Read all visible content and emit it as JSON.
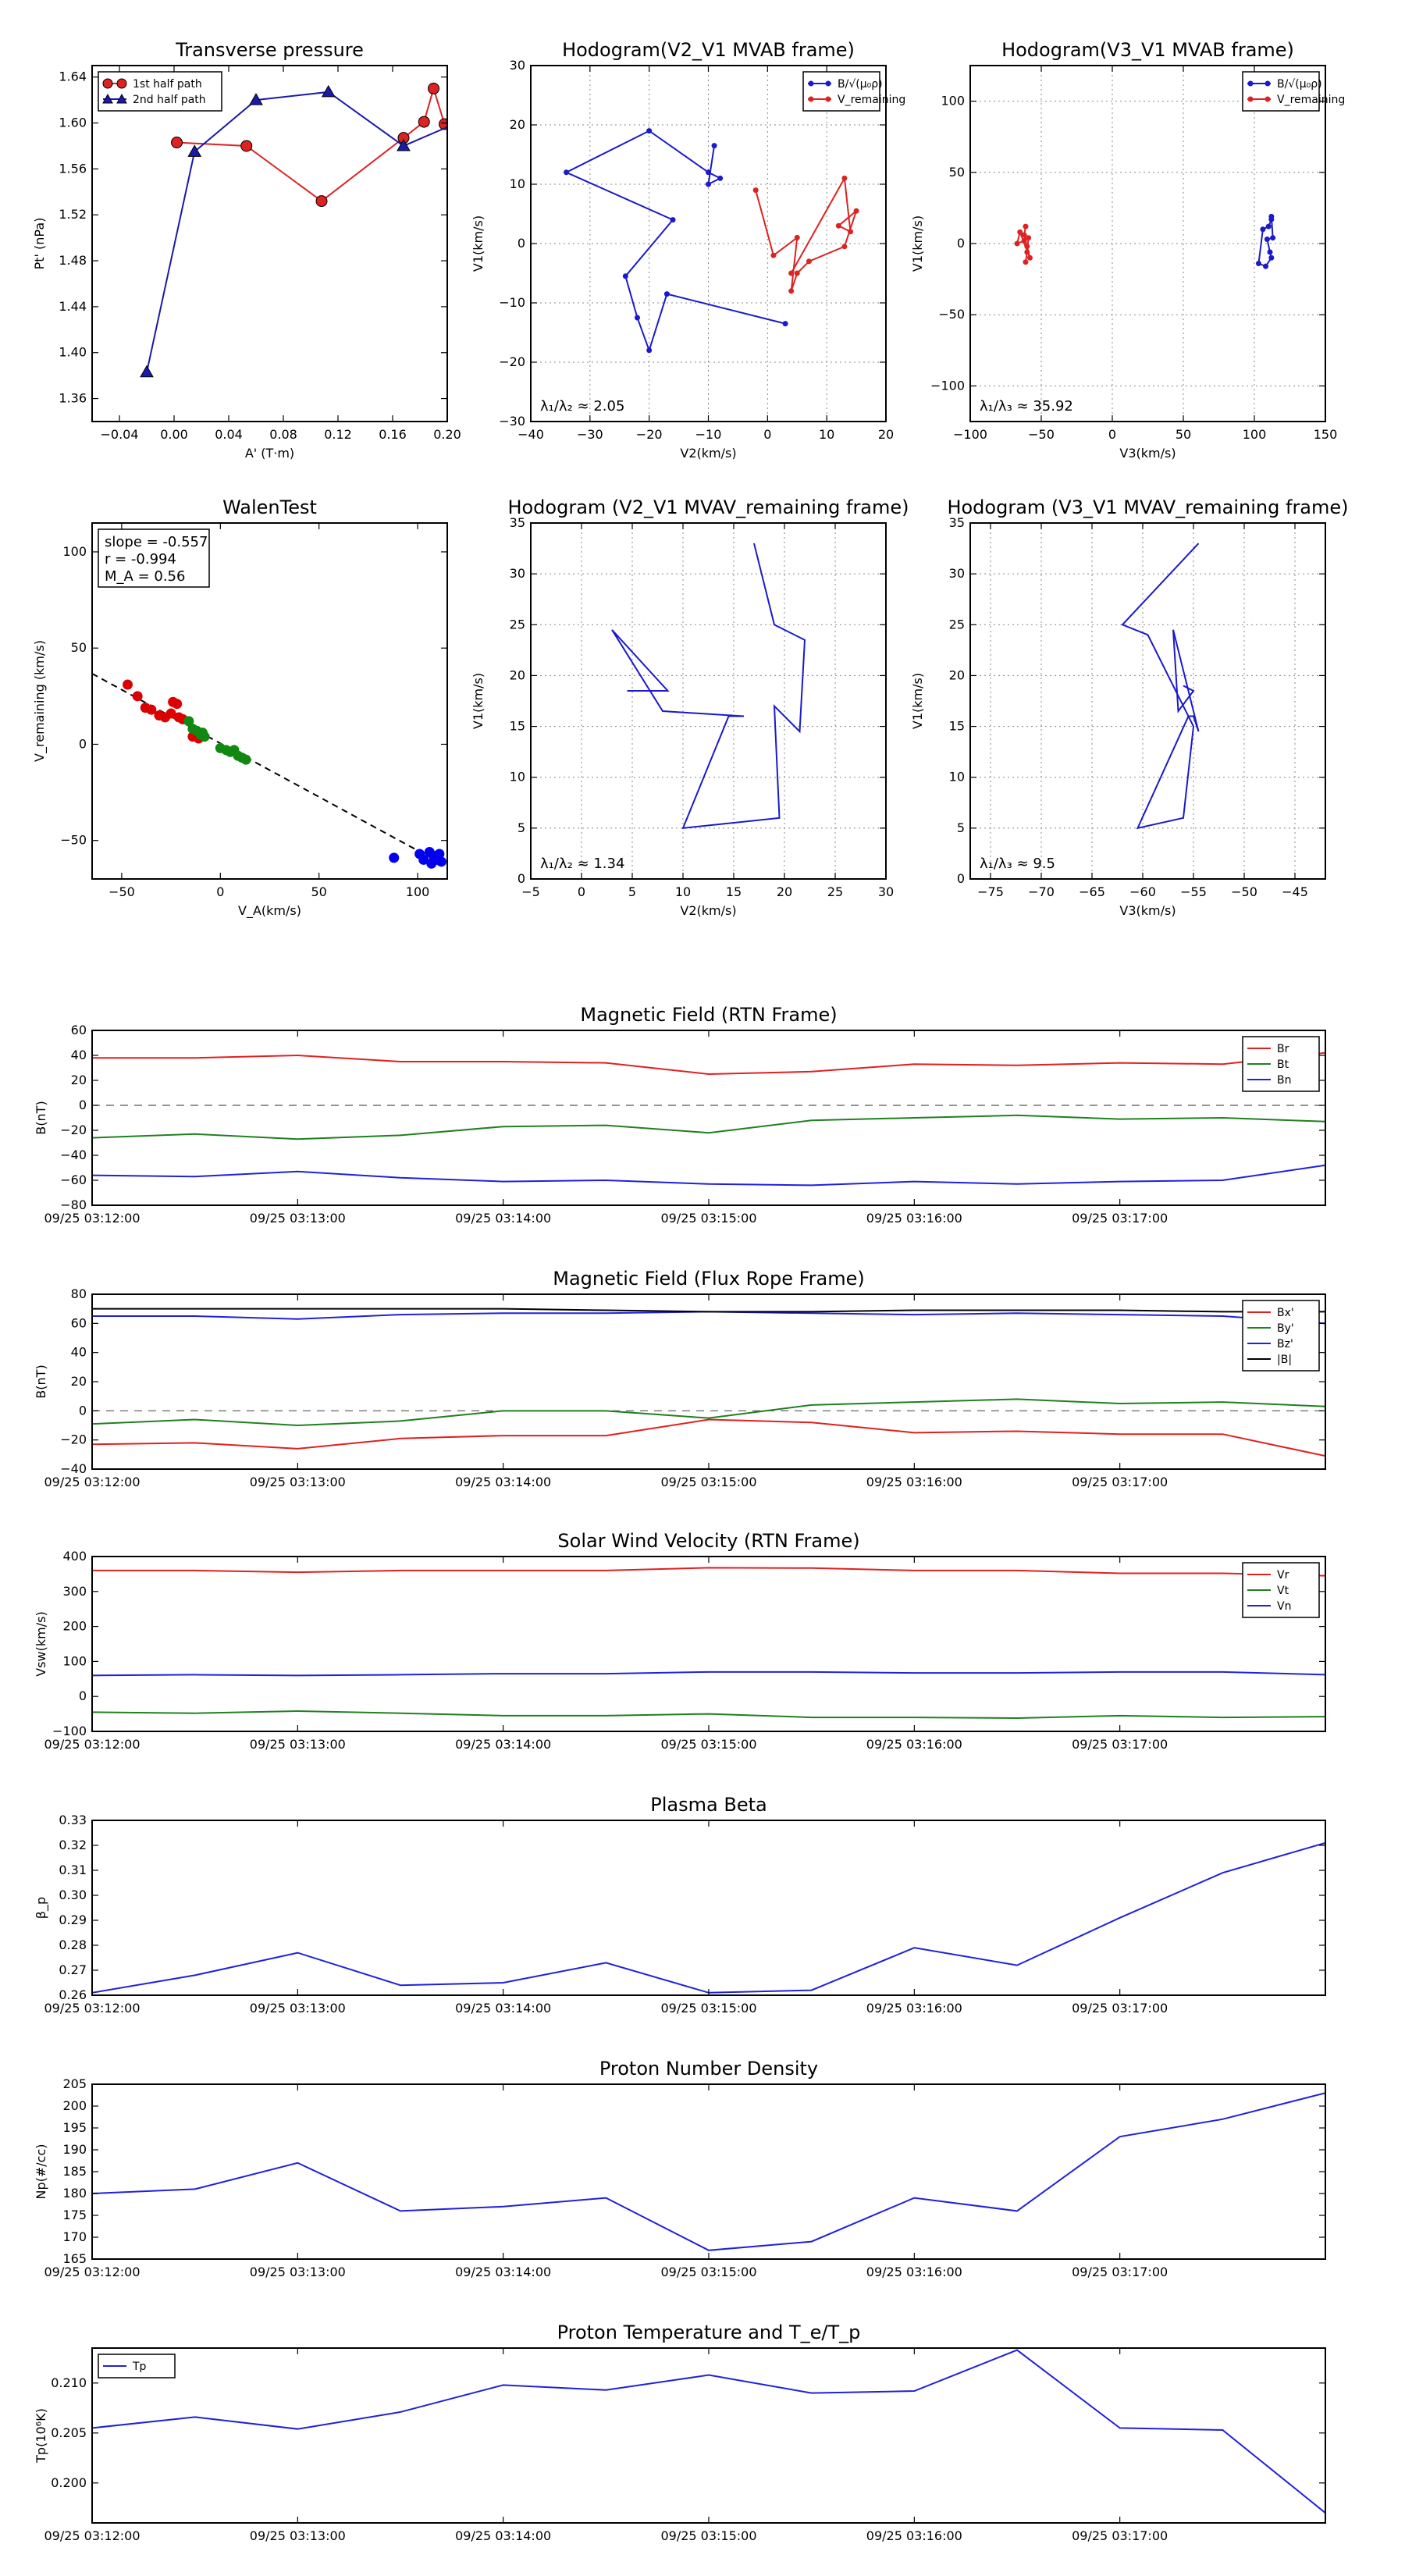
{
  "chart_data": [
    {
      "id": "transverse-pressure",
      "type": "line",
      "title": "Transverse pressure",
      "xlabel": "A' (T·m)",
      "ylabel": "Pt' (nPa)",
      "xlim": [
        -0.06,
        0.2
      ],
      "ylim": [
        1.34,
        1.65
      ],
      "xticks": [
        -0.04,
        0.0,
        0.04,
        0.08,
        0.12,
        0.16,
        0.2
      ],
      "xtick_labels": [
        "−0.04",
        "0.00",
        "0.04",
        "0.08",
        "0.12",
        "0.16",
        "0.20"
      ],
      "yticks": [
        1.36,
        1.4,
        1.44,
        1.48,
        1.52,
        1.56,
        1.6,
        1.64
      ],
      "ytick_labels": [
        "1.36",
        "1.40",
        "1.44",
        "1.48",
        "1.52",
        "1.56",
        "1.60",
        "1.64"
      ],
      "grid": false,
      "legend_loc": "upper-left",
      "series": [
        {
          "name": "1st half path",
          "color": "#dd2222",
          "marker": "circle",
          "x": [
            0.002,
            0.053,
            0.108,
            0.168,
            0.183,
            0.19,
            0.198,
            0.204,
            0.207
          ],
          "y": [
            1.583,
            1.58,
            1.532,
            1.587,
            1.601,
            1.63,
            1.599,
            1.6,
            1.596
          ]
        },
        {
          "name": "2nd half path",
          "color": "#1a1aaa",
          "marker": "triangle",
          "x": [
            -0.02,
            0.015,
            0.06,
            0.113,
            0.168,
            0.205
          ],
          "y": [
            1.383,
            1.575,
            1.62,
            1.627,
            1.58,
            1.599
          ]
        }
      ]
    },
    {
      "id": "hodogram-v2-v1-mvab",
      "type": "scatter",
      "title": "Hodogram(V2_V1 MVAB frame)",
      "xlabel": "V2(km/s)",
      "ylabel": "V1(km/s)",
      "xlim": [
        -40,
        20
      ],
      "ylim": [
        -30,
        30
      ],
      "xticks": [
        -40,
        -30,
        -20,
        -10,
        0,
        10,
        20
      ],
      "xtick_labels": [
        "−40",
        "−30",
        "−20",
        "−10",
        "0",
        "10",
        "20"
      ],
      "yticks": [
        -30,
        -20,
        -10,
        0,
        10,
        20,
        30
      ],
      "ytick_labels": [
        "−30",
        "−20",
        "−10",
        "0",
        "10",
        "20",
        "30"
      ],
      "grid": true,
      "legend_loc": "upper-right",
      "annotation": "λ₁/λ₂ ≈ 2.05",
      "series": [
        {
          "name": "B/√(μ₀ρ)",
          "color": "#1a1acc",
          "marker": "dot",
          "x": [
            -9,
            -10,
            -8,
            -10,
            -20,
            -34,
            -16,
            -24,
            -22,
            -20,
            -17,
            3
          ],
          "y": [
            16.5,
            10,
            11,
            12,
            19,
            12,
            4,
            -5.5,
            -12.5,
            -18,
            -8.5,
            -13.5
          ]
        },
        {
          "name": "V_remaining",
          "color": "#dd2222",
          "marker": "dot",
          "x": [
            -2,
            1,
            5,
            4,
            5,
            7,
            13,
            15,
            12,
            14,
            13,
            4
          ],
          "y": [
            9,
            -2,
            1,
            -8,
            -5,
            -3,
            -0.5,
            5.5,
            3,
            2,
            11,
            -5
          ]
        }
      ]
    },
    {
      "id": "hodogram-v3-v1-mvab",
      "type": "scatter",
      "title": "Hodogram(V3_V1 MVAB frame)",
      "xlabel": "V3(km/s)",
      "ylabel": "V1(km/s)",
      "xlim": [
        -100,
        150
      ],
      "ylim": [
        -125,
        125
      ],
      "xticks": [
        -100,
        -50,
        0,
        50,
        100,
        150
      ],
      "xtick_labels": [
        "−100",
        "−50",
        "0",
        "50",
        "100",
        "150"
      ],
      "yticks": [
        -100,
        -50,
        0,
        50,
        100
      ],
      "ytick_labels": [
        "−100",
        "−50",
        "0",
        "50",
        "100"
      ],
      "grid": true,
      "legend_loc": "upper-right",
      "annotation": "λ₁/λ₃ ≈ 35.92",
      "series": [
        {
          "name": "B/√(μ₀ρ)",
          "color": "#1a1acc",
          "marker": "dot",
          "x": [
            112,
            110,
            106,
            103,
            108,
            112,
            111,
            109,
            113,
            112
          ],
          "y": [
            17,
            12,
            10,
            -14,
            -16,
            -10,
            -6,
            3,
            4,
            19
          ]
        },
        {
          "name": "V_remaining",
          "color": "#dd2222",
          "marker": "dot",
          "x": [
            -61,
            -62,
            -60,
            -58,
            -65,
            -67,
            -62,
            -59,
            -60,
            -61
          ],
          "y": [
            12,
            6,
            -2,
            -10,
            8,
            0,
            2,
            4,
            -6,
            -13
          ]
        }
      ]
    },
    {
      "id": "walen-test",
      "type": "scatter",
      "title": "WalenTest",
      "xlabel": "V_A(km/s)",
      "ylabel": "V_remaining (km/s)",
      "xlim": [
        -65,
        115
      ],
      "ylim": [
        -70,
        115
      ],
      "xticks": [
        -50,
        0,
        50,
        100
      ],
      "xtick_labels": [
        "−50",
        "0",
        "50",
        "100"
      ],
      "yticks": [
        -50,
        0,
        50,
        100
      ],
      "ytick_labels": [
        "−50",
        "0",
        "50",
        "100"
      ],
      "grid": false,
      "stats_box": [
        "slope = -0.557",
        "r = -0.994",
        "M_A = 0.56"
      ],
      "fit_line": {
        "slope": -0.557,
        "intercept": 0.5,
        "x": [
          -65,
          112
        ]
      },
      "series": [
        {
          "name": "red",
          "color": "#dd0000",
          "x": [
            -47,
            -42,
            -38,
            -35,
            -31,
            -28,
            -25,
            -24,
            -22,
            -21,
            -19,
            -14,
            -12,
            -11
          ],
          "y": [
            31,
            25,
            19,
            18,
            15,
            14,
            16,
            22,
            21,
            14,
            13,
            4,
            5,
            3
          ]
        },
        {
          "name": "green",
          "color": "#118811",
          "x": [
            -16,
            -14,
            -12,
            -10,
            -9,
            -8,
            0,
            3,
            5,
            7,
            9,
            11,
            13
          ],
          "y": [
            12,
            8,
            7,
            5,
            6,
            4,
            -2,
            -3,
            -4,
            -3,
            -6,
            -7,
            -8
          ]
        },
        {
          "name": "blue",
          "color": "#0000ee",
          "x": [
            88,
            101,
            103,
            106,
            107,
            108,
            110,
            111,
            112
          ],
          "y": [
            -59,
            -57,
            -60,
            -56,
            -62,
            -58,
            -60,
            -57,
            -61
          ]
        }
      ]
    },
    {
      "id": "hodogram-v2-v1-mvav",
      "type": "line",
      "title": "Hodogram (V2_V1 MVAV_remaining frame)",
      "xlabel": "V2(km/s)",
      "ylabel": "V1(km/s)",
      "xlim": [
        -5,
        30
      ],
      "ylim": [
        0,
        35
      ],
      "xticks": [
        -5,
        0,
        5,
        10,
        15,
        20,
        25,
        30
      ],
      "xtick_labels": [
        "−5",
        "0",
        "5",
        "10",
        "15",
        "20",
        "25",
        "30"
      ],
      "yticks": [
        0,
        5,
        10,
        15,
        20,
        25,
        30,
        35
      ],
      "ytick_labels": [
        "0",
        "5",
        "10",
        "15",
        "20",
        "25",
        "30",
        "35"
      ],
      "grid": true,
      "annotation": "λ₁/λ₂ ≈ 1.34",
      "series": [
        {
          "name": "blue",
          "color": "#1a1acc",
          "x": [
            17,
            19,
            22,
            21.5,
            19,
            19.5,
            10,
            14.5,
            16,
            8,
            3,
            8.5,
            4.5
          ],
          "y": [
            33,
            25,
            23.5,
            14.5,
            17,
            6,
            5,
            16,
            16,
            16.5,
            24.5,
            18.5,
            18.5
          ]
        }
      ]
    },
    {
      "id": "hodogram-v3-v1-mvav",
      "type": "line",
      "title": "Hodogram (V3_V1 MVAV_remaining frame)",
      "xlabel": "V3(km/s)",
      "ylabel": "V1(km/s)",
      "xlim": [
        -77,
        -42
      ],
      "ylim": [
        0,
        35
      ],
      "xticks": [
        -75,
        -70,
        -65,
        -60,
        -55,
        -50,
        -45
      ],
      "xtick_labels": [
        "−75",
        "−70",
        "−65",
        "−60",
        "−55",
        "−50",
        "−45"
      ],
      "yticks": [
        0,
        5,
        10,
        15,
        20,
        25,
        30,
        35
      ],
      "ytick_labels": [
        "0",
        "5",
        "10",
        "15",
        "20",
        "25",
        "30",
        "35"
      ],
      "grid": true,
      "annotation": "λ₁/λ₃ ≈ 9.5",
      "series": [
        {
          "name": "blue",
          "color": "#1a1acc",
          "x": [
            -54.5,
            -62,
            -59.5,
            -55,
            -56,
            -60.5,
            -55.5,
            -55,
            -54.5,
            -57,
            -56.5,
            -55,
            -56
          ],
          "y": [
            33,
            25,
            24,
            15,
            6,
            5,
            16,
            16,
            14.5,
            24.5,
            16.5,
            18.5,
            19
          ]
        }
      ]
    },
    {
      "id": "magnetic-field-rtn",
      "type": "line",
      "title": "Magnetic Field (RTN Frame)",
      "ylabel": "B(nT)",
      "x": [
        0,
        0.5,
        1,
        1.5,
        2,
        2.5,
        3,
        3.5,
        4,
        4.5,
        5,
        5.5,
        6
      ],
      "ylim": [
        -80,
        60
      ],
      "yticks": [
        -80,
        -60,
        -40,
        -20,
        0,
        20,
        40,
        60
      ],
      "ytick_labels": [
        "−80",
        "−60",
        "−40",
        "−20",
        "0",
        "20",
        "40",
        "60"
      ],
      "zero_line": true,
      "legend_loc": "upper-right",
      "series": [
        {
          "name": "Br",
          "color": "#e02020",
          "values": [
            38,
            38,
            40,
            35,
            35,
            34,
            25,
            27,
            33,
            32,
            34,
            33,
            42
          ]
        },
        {
          "name": "Bt",
          "color": "#208020",
          "values": [
            -26,
            -23,
            -27,
            -24,
            -17,
            -16,
            -22,
            -12,
            -10,
            -8,
            -11,
            -10,
            -13
          ]
        },
        {
          "name": "Bn",
          "color": "#2020dd",
          "values": [
            -56,
            -57,
            -53,
            -58,
            -61,
            -60,
            -63,
            -64,
            -61,
            -63,
            -61,
            -60,
            -48
          ]
        }
      ]
    },
    {
      "id": "magnetic-field-flux-rope",
      "type": "line",
      "title": "Magnetic Field (Flux Rope Frame)",
      "ylabel": "B(nT)",
      "x": [
        0,
        0.5,
        1,
        1.5,
        2,
        2.5,
        3,
        3.5,
        4,
        4.5,
        5,
        5.5,
        6
      ],
      "ylim": [
        -40,
        80
      ],
      "yticks": [
        -40,
        -20,
        0,
        20,
        40,
        60,
        80
      ],
      "ytick_labels": [
        "−40",
        "−20",
        "0",
        "20",
        "40",
        "60",
        "80"
      ],
      "zero_line": true,
      "legend_loc": "upper-right",
      "series": [
        {
          "name": "Bx'",
          "color": "#e02020",
          "values": [
            -23,
            -22,
            -26,
            -19,
            -17,
            -17,
            -6,
            -8,
            -15,
            -14,
            -16,
            -16,
            -31
          ]
        },
        {
          "name": "By'",
          "color": "#208020",
          "values": [
            -9,
            -6,
            -10,
            -7,
            0,
            0,
            -5,
            4,
            6,
            8,
            5,
            6,
            3
          ]
        },
        {
          "name": "Bz'",
          "color": "#2020dd",
          "values": [
            65,
            65,
            63,
            66,
            67,
            67,
            68,
            67,
            66,
            67,
            66,
            65,
            60
          ]
        },
        {
          "name": "|B|",
          "color": "#000000",
          "values": [
            70,
            70,
            70,
            70,
            70,
            69,
            68,
            68,
            69,
            69,
            69,
            68,
            68
          ]
        }
      ]
    },
    {
      "id": "solar-wind-velocity",
      "type": "line",
      "title": "Solar Wind Velocity (RTN Frame)",
      "ylabel": "Vsw(km/s)",
      "x": [
        0,
        0.5,
        1,
        1.5,
        2,
        2.5,
        3,
        3.5,
        4,
        4.5,
        5,
        5.5,
        6
      ],
      "ylim": [
        -100,
        400
      ],
      "yticks": [
        -100,
        0,
        100,
        200,
        300,
        400
      ],
      "ytick_labels": [
        "−100",
        "0",
        "100",
        "200",
        "300",
        "400"
      ],
      "legend_loc": "upper-right",
      "series": [
        {
          "name": "Vr",
          "color": "#e02020",
          "values": [
            360,
            360,
            355,
            360,
            360,
            360,
            368,
            367,
            360,
            360,
            352,
            352,
            345
          ]
        },
        {
          "name": "Vt",
          "color": "#208020",
          "values": [
            -45,
            -48,
            -42,
            -48,
            -55,
            -55,
            -50,
            -60,
            -60,
            -62,
            -55,
            -60,
            -58
          ]
        },
        {
          "name": "Vn",
          "color": "#2020dd",
          "values": [
            60,
            62,
            60,
            62,
            65,
            65,
            70,
            70,
            67,
            67,
            70,
            70,
            62
          ]
        }
      ]
    },
    {
      "id": "plasma-beta",
      "type": "line",
      "title": "Plasma Beta",
      "ylabel": "β_p",
      "x": [
        0,
        0.5,
        1,
        1.5,
        2,
        2.5,
        3,
        3.5,
        4,
        4.5,
        5,
        5.5,
        6
      ],
      "ylim": [
        0.26,
        0.33
      ],
      "yticks": [
        0.26,
        0.27,
        0.28,
        0.29,
        0.3,
        0.31,
        0.32,
        0.33
      ],
      "ytick_labels": [
        "0.26",
        "0.27",
        "0.28",
        "0.29",
        "0.30",
        "0.31",
        "0.32",
        "0.33"
      ],
      "series": [
        {
          "name": "beta",
          "color": "#2020dd",
          "values": [
            0.261,
            0.268,
            0.277,
            0.264,
            0.265,
            0.273,
            0.261,
            0.262,
            0.279,
            0.272,
            0.291,
            0.309,
            0.321
          ]
        }
      ]
    },
    {
      "id": "proton-number-density",
      "type": "line",
      "title": "Proton Number Density",
      "ylabel": "Np(#/cc)",
      "x": [
        0,
        0.5,
        1,
        1.5,
        2,
        2.5,
        3,
        3.5,
        4,
        4.5,
        5,
        5.5,
        6
      ],
      "ylim": [
        165,
        205
      ],
      "yticks": [
        165,
        170,
        175,
        180,
        185,
        190,
        195,
        200,
        205
      ],
      "ytick_labels": [
        "165",
        "170",
        "175",
        "180",
        "185",
        "190",
        "195",
        "200",
        "205"
      ],
      "series": [
        {
          "name": "Np",
          "color": "#2020dd",
          "values": [
            180,
            181,
            187,
            176,
            177,
            179,
            167,
            169,
            179,
            176,
            193,
            197,
            203
          ]
        }
      ]
    },
    {
      "id": "proton-temperature",
      "type": "line",
      "title": "Proton Temperature and T_e/T_p",
      "ylabel": "Tp(10⁶K)",
      "x": [
        0,
        0.5,
        1,
        1.5,
        2,
        2.5,
        3,
        3.5,
        4,
        4.5,
        5,
        5.5,
        6
      ],
      "ylim": [
        0.196,
        0.2135
      ],
      "yticks": [
        0.2,
        0.205,
        0.21
      ],
      "ytick_labels": [
        "0.200",
        "0.205",
        "0.210"
      ],
      "legend_loc": "upper-left",
      "series": [
        {
          "name": "Tp",
          "color": "#2020dd",
          "values": [
            0.2055,
            0.2066,
            0.2054,
            0.2071,
            0.2098,
            0.2093,
            0.2108,
            0.209,
            0.2092,
            0.2133,
            0.2055,
            0.2053,
            0.197
          ]
        }
      ]
    }
  ],
  "time_axis": {
    "ticks": [
      0,
      1,
      2,
      3,
      4,
      5
    ],
    "labels": [
      "09/25 03:12:00",
      "09/25 03:13:00",
      "09/25 03:14:00",
      "09/25 03:15:00",
      "09/25 03:16:00",
      "09/25 03:17:00"
    ]
  },
  "colors": {
    "axis": "#000000",
    "grid": "#888888"
  }
}
